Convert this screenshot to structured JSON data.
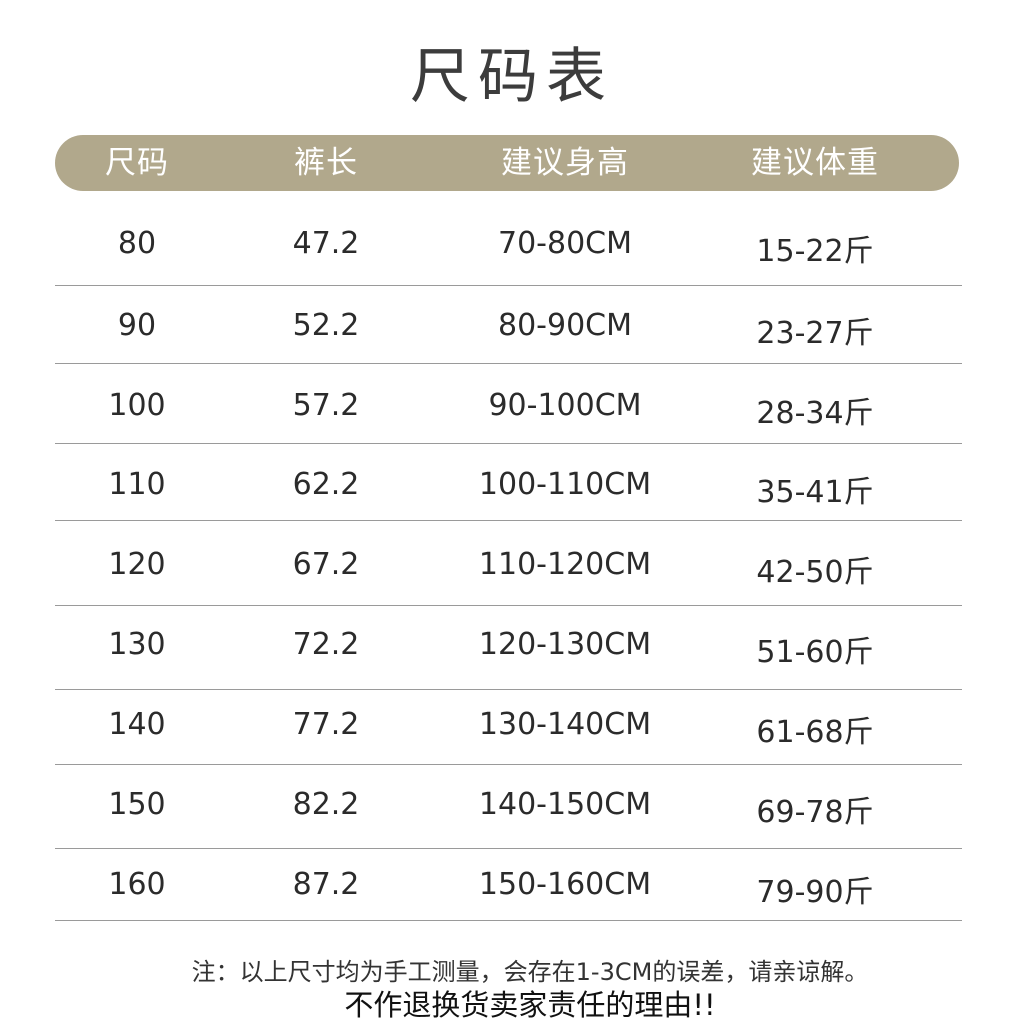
{
  "title": "尺码表",
  "table": {
    "headers": [
      "尺码",
      "裤长",
      "建议身高",
      "建议体重"
    ],
    "rows": [
      [
        "80",
        "47.2",
        "70-80CM",
        "15-22斤"
      ],
      [
        "90",
        "52.2",
        "80-90CM",
        "23-27斤"
      ],
      [
        "100",
        "57.2",
        "90-100CM",
        "28-34斤"
      ],
      [
        "110",
        "62.2",
        "100-110CM",
        "35-41斤"
      ],
      [
        "120",
        "67.2",
        "110-120CM",
        "42-50斤"
      ],
      [
        "130",
        "72.2",
        "120-130CM",
        "51-60斤"
      ],
      [
        "140",
        "77.2",
        "130-140CM",
        "61-68斤"
      ],
      [
        "150",
        "82.2",
        "140-150CM",
        "69-78斤"
      ],
      [
        "160",
        "87.2",
        "150-160CM",
        "79-90斤"
      ]
    ]
  },
  "note": "注：以上尺寸均为手工测量，会存在1-3CM的误差，请亲谅解。",
  "warning": "不作退换货卖家责任的理由!!",
  "colors": {
    "header_bg": "#b1a88c",
    "header_text": "#ffffff",
    "divider": "#9a9a9a"
  }
}
